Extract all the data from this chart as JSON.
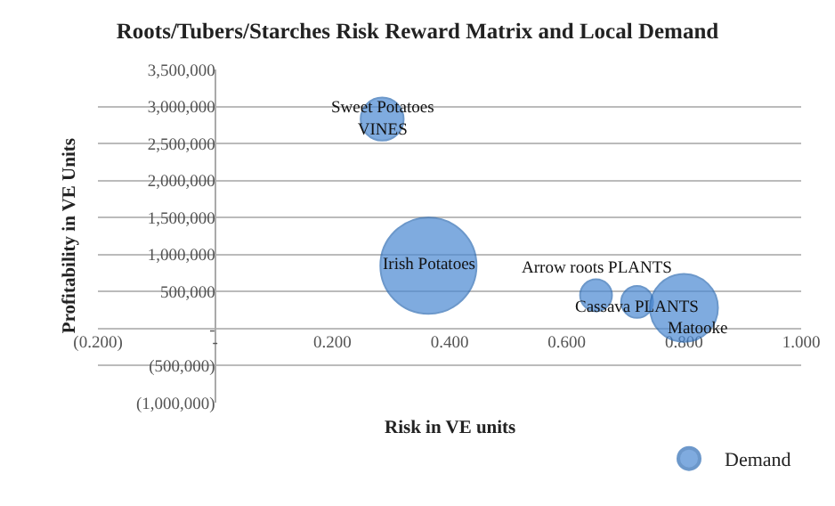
{
  "chart_data": {
    "type": "bubble",
    "title": "Roots/Tubers/Starches Risk Reward Matrix and Local Demand",
    "xlabel": "Risk in VE units",
    "ylabel": "Profitability in VE Units",
    "series": [
      {
        "name": "Demand",
        "color": "#4a88d2",
        "x": [
          0.285,
          0.364,
          0.65,
          0.72,
          0.8
        ],
        "values": [
          2830000,
          850000,
          450000,
          360000,
          280000
        ],
        "sizes": [
          0.2,
          1,
          0.11,
          0.11,
          0.5
        ]
      }
    ],
    "xlim": [
      -0.2,
      1.0
    ],
    "xticks": [
      {
        "value": -0.2,
        "label": "(0.200)"
      },
      {
        "value": 0,
        "label": "-"
      },
      {
        "value": 0.2,
        "label": "0.200"
      },
      {
        "value": 0.4,
        "label": "0.400"
      },
      {
        "value": 0.6,
        "label": "0.600"
      },
      {
        "value": 0.8,
        "label": "0.800"
      },
      {
        "value": 1.0,
        "label": "1.000"
      }
    ],
    "ylim": [
      -1000000,
      3500000
    ],
    "yticks": [
      {
        "value": -1000000,
        "label": "(1,000,000)"
      },
      {
        "value": -500000,
        "label": "(500,000)"
      },
      {
        "value": 0,
        "label": "-"
      },
      {
        "value": 500000,
        "label": "500,000"
      },
      {
        "value": 1000000,
        "label": "1,000,000"
      },
      {
        "value": 1500000,
        "label": "1,500,000"
      },
      {
        "value": 2000000,
        "label": "2,000,000"
      },
      {
        "value": 2500000,
        "label": "2,500,000"
      },
      {
        "value": 3000000,
        "label": "3,000,000"
      },
      {
        "value": 3500000,
        "label": "3,500,000"
      }
    ],
    "annotations": [
      {
        "text": "Sweet Potatoes\nVINES",
        "x": 0.285,
        "y": 2830000
      },
      {
        "text": "Irish Potatoes",
        "x": 0.364,
        "y": 850000
      },
      {
        "text": "Arrow roots PLANTS",
        "x": 0.65,
        "y": 450000
      },
      {
        "text": "Cassava PLANTS",
        "x": 0.72,
        "y": 360000
      },
      {
        "text": "Matooke",
        "x": 0.8,
        "y": 280000
      }
    ],
    "grid": "y",
    "legend": "bottom right",
    "marker": "circle"
  }
}
